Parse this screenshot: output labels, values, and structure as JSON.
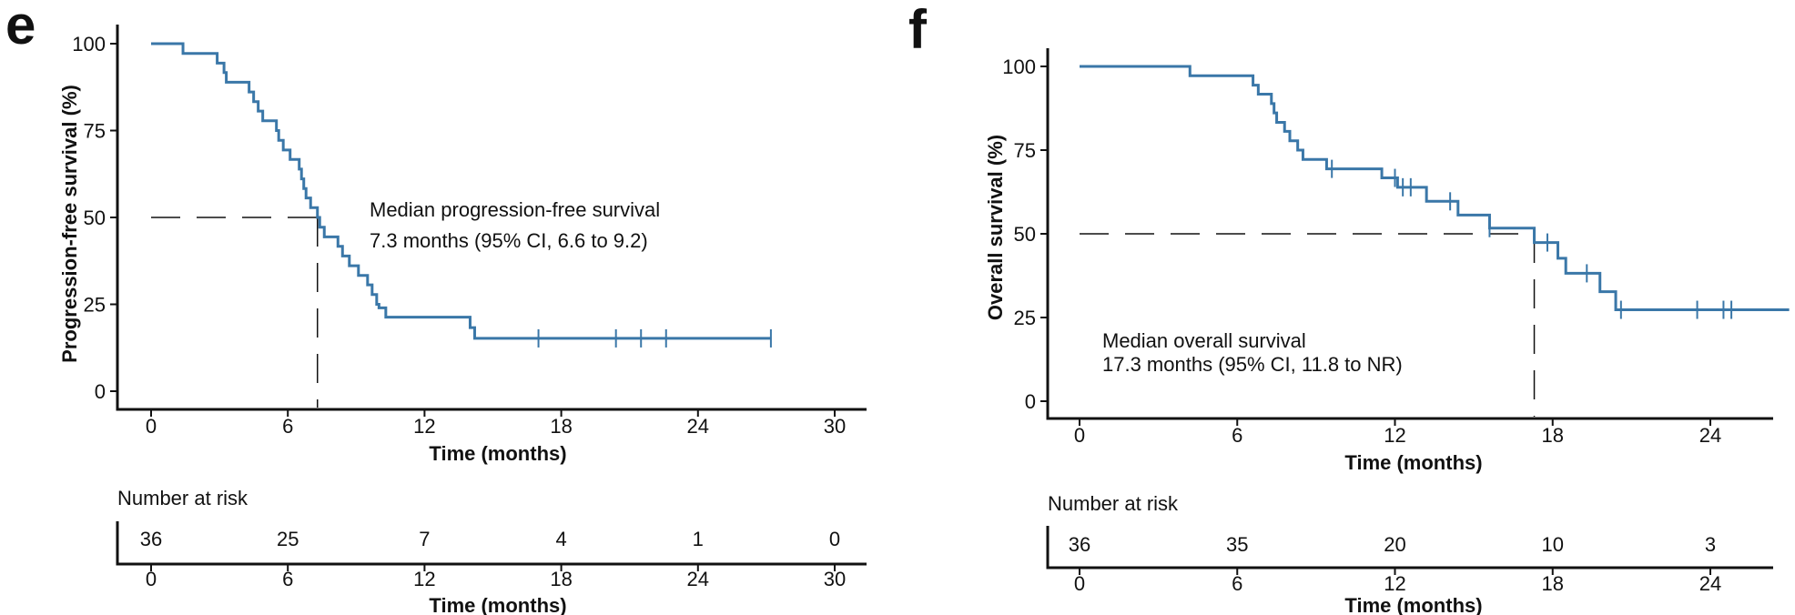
{
  "chart_data": [
    {
      "panel": "e",
      "type": "line",
      "subtype": "kaplan-meier",
      "ylabel": "Progression-free survival  (%)",
      "xlabel": "Time (months)",
      "xticks": [
        0,
        6,
        12,
        18,
        24,
        30
      ],
      "yticks": [
        0,
        25,
        50,
        75,
        100
      ],
      "xlim": [
        0,
        30
      ],
      "ylim": [
        0,
        100
      ],
      "color": "#3a77a8",
      "steps": [
        [
          0,
          100
        ],
        [
          1.4,
          97.2
        ],
        [
          2.9,
          94.4
        ],
        [
          3.2,
          91.7
        ],
        [
          3.3,
          88.9
        ],
        [
          4.3,
          86.1
        ],
        [
          4.5,
          83.3
        ],
        [
          4.7,
          80.6
        ],
        [
          4.9,
          77.8
        ],
        [
          5.5,
          75
        ],
        [
          5.6,
          72.2
        ],
        [
          5.8,
          69.4
        ],
        [
          6.1,
          66.7
        ],
        [
          6.5,
          63.9
        ],
        [
          6.6,
          61.1
        ],
        [
          6.7,
          58.3
        ],
        [
          6.8,
          55.6
        ],
        [
          7.0,
          52.8
        ],
        [
          7.3,
          50
        ],
        [
          7.4,
          47.2
        ],
        [
          7.6,
          44.4
        ],
        [
          8.2,
          41.7
        ],
        [
          8.4,
          38.9
        ],
        [
          8.7,
          36.1
        ],
        [
          9.1,
          33.3
        ],
        [
          9.5,
          30.6
        ],
        [
          9.7,
          27.8
        ],
        [
          9.9,
          25
        ],
        [
          10.0,
          24
        ],
        [
          10.3,
          21.3
        ],
        [
          14.0,
          18.3
        ],
        [
          14.2,
          15.2
        ]
      ],
      "end_x": 27.2,
      "censor_x": [
        17.0,
        20.4,
        21.5,
        22.6,
        27.2
      ],
      "censor_y": 15.2,
      "median": {
        "x": 7.3,
        "y": 50
      },
      "annotation": [
        "Median progression-free survival",
        "7.3 months (95% CI, 6.6 to 9.2)"
      ],
      "risk_title": "Number at risk",
      "risk_times": [
        0,
        6,
        12,
        18,
        24,
        30
      ],
      "risk_counts": [
        "36",
        "25",
        "7",
        "4",
        "1",
        "0"
      ]
    },
    {
      "panel": "f",
      "type": "line",
      "subtype": "kaplan-meier",
      "ylabel": "Overall survival (%)",
      "xlabel": "Time (months)",
      "xticks": [
        0,
        6,
        12,
        18,
        24
      ],
      "yticks": [
        0,
        25,
        50,
        75,
        100
      ],
      "xlim": [
        0,
        27
      ],
      "ylim": [
        0,
        100
      ],
      "color": "#3a77a8",
      "steps": [
        [
          0,
          100
        ],
        [
          4.2,
          97.2
        ],
        [
          6.6,
          94.4
        ],
        [
          6.8,
          91.7
        ],
        [
          7.3,
          88.9
        ],
        [
          7.4,
          86.1
        ],
        [
          7.5,
          83.3
        ],
        [
          7.8,
          80.6
        ],
        [
          8.0,
          77.8
        ],
        [
          8.3,
          75
        ],
        [
          8.5,
          72.2
        ],
        [
          9.4,
          69.4
        ],
        [
          11.5,
          66.7
        ],
        [
          12.1,
          63.9
        ],
        [
          13.2,
          59.7
        ],
        [
          14.4,
          55.6
        ],
        [
          15.6,
          51.7
        ],
        [
          17.3,
          47.4
        ],
        [
          18.2,
          42.7
        ],
        [
          18.5,
          38.2
        ],
        [
          19.8,
          32.7
        ],
        [
          20.4,
          27.3
        ]
      ],
      "end_x": 27,
      "censor_x": [
        9.6,
        12.0,
        12.3,
        12.6,
        14.1,
        15.6,
        17.8,
        19.3,
        20.6,
        23.5,
        24.5,
        24.8
      ],
      "median": {
        "x": 17.3,
        "y": 50
      },
      "annotation": [
        "Median overall survival",
        "17.3 months (95% CI, 11.8 to NR)"
      ],
      "risk_title": "Number at risk",
      "risk_times": [
        0,
        6,
        12,
        18,
        24
      ],
      "risk_counts": [
        "36",
        "35",
        "20",
        "10",
        "3"
      ]
    }
  ]
}
